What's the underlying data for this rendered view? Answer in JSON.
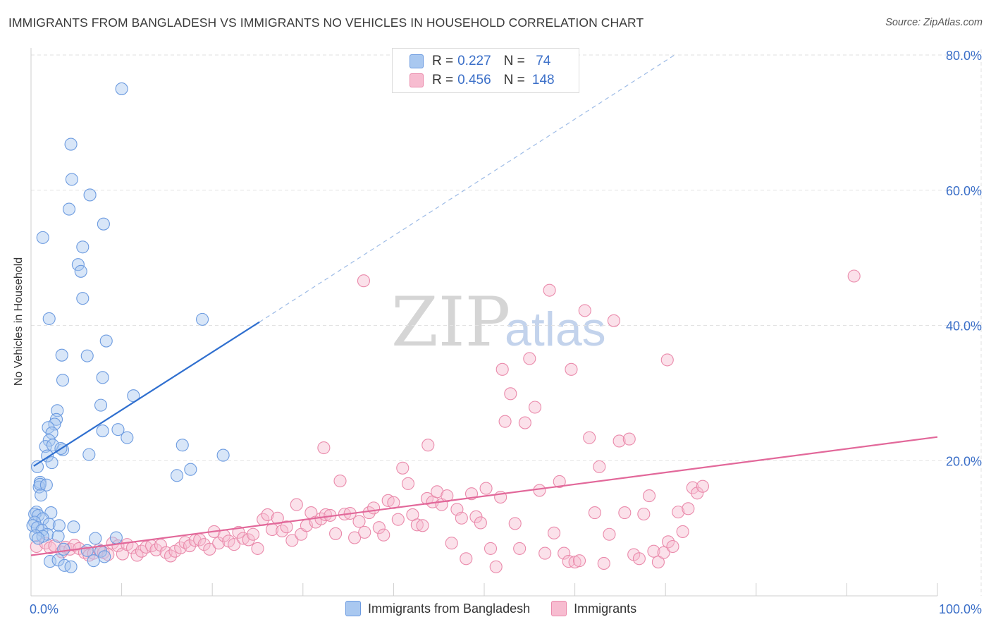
{
  "header": {
    "title": "IMMIGRANTS FROM BANGLADESH VS IMMIGRANTS NO VEHICLES IN HOUSEHOLD CORRELATION CHART",
    "source": "Source: ZipAtlas.com"
  },
  "watermark": {
    "zip": "ZIP",
    "atlas": "atlas"
  },
  "legend_top": {
    "rows": [
      {
        "r_label": "R =",
        "r_value": "0.227",
        "n_label": "N =",
        "n_value": "74",
        "color": "#a9c8f0",
        "border": "#6c9be0"
      },
      {
        "r_label": "R =",
        "r_value": "0.456",
        "n_label": "N =",
        "n_value": "148",
        "color": "#f7bcd0",
        "border": "#ea8aab"
      }
    ]
  },
  "legend_bottom": {
    "items": [
      {
        "label": "Immigrants from Bangladesh",
        "color": "#a9c8f0",
        "border": "#6c9be0"
      },
      {
        "label": "Immigrants",
        "color": "#f7bcd0",
        "border": "#ea8aab"
      }
    ]
  },
  "chart_data": {
    "type": "scatter",
    "title": "IMMIGRANTS FROM BANGLADESH VS IMMIGRANTS NO VEHICLES IN HOUSEHOLD CORRELATION CHART",
    "xlabel": "",
    "ylabel": "No Vehicles in Household",
    "xlim": [
      0,
      100
    ],
    "ylim": [
      0,
      80
    ],
    "x_tick_labels": [
      {
        "value": 0,
        "label": "0.0%"
      },
      {
        "value": 100,
        "label": "100.0%"
      }
    ],
    "y_tick_labels": [
      {
        "value": 20,
        "label": "20.0%"
      },
      {
        "value": 40,
        "label": "40.0%"
      },
      {
        "value": 60,
        "label": "60.0%"
      },
      {
        "value": 80,
        "label": "80.0%"
      }
    ],
    "grid": true,
    "legend_position": "top-center",
    "series": [
      {
        "name": "Immigrants from Bangladesh",
        "color": "#a9c8f0",
        "stroke": "#6c9be0",
        "trend_color": "#2f6fcf",
        "trend": {
          "x_start": 0.3,
          "y_start": 19.2,
          "x_solid_end": 25.2,
          "y_solid_end": 40.5,
          "x_dash_end": 71.0,
          "y_dash_end": 80.0
        },
        "points": [
          [
            10.0,
            75.0
          ],
          [
            4.4,
            66.8
          ],
          [
            4.5,
            61.6
          ],
          [
            6.5,
            59.3
          ],
          [
            4.2,
            57.2
          ],
          [
            8.0,
            55.0
          ],
          [
            1.3,
            53.0
          ],
          [
            5.7,
            51.6
          ],
          [
            5.2,
            49.0
          ],
          [
            5.5,
            48.0
          ],
          [
            5.7,
            44.0
          ],
          [
            2.0,
            41.0
          ],
          [
            18.9,
            40.9
          ],
          [
            8.3,
            37.7
          ],
          [
            3.4,
            35.6
          ],
          [
            6.2,
            35.5
          ],
          [
            7.9,
            32.3
          ],
          [
            3.5,
            31.9
          ],
          [
            11.3,
            29.6
          ],
          [
            7.7,
            28.2
          ],
          [
            2.9,
            27.4
          ],
          [
            2.8,
            26.1
          ],
          [
            2.6,
            25.4
          ],
          [
            1.9,
            24.9
          ],
          [
            2.3,
            24.1
          ],
          [
            7.9,
            24.4
          ],
          [
            9.6,
            24.6
          ],
          [
            10.6,
            23.4
          ],
          [
            2.0,
            23.0
          ],
          [
            1.6,
            22.1
          ],
          [
            2.4,
            22.3
          ],
          [
            16.7,
            22.3
          ],
          [
            3.5,
            21.6
          ],
          [
            3.3,
            21.8
          ],
          [
            6.4,
            20.9
          ],
          [
            21.2,
            20.8
          ],
          [
            1.8,
            20.7
          ],
          [
            2.3,
            19.7
          ],
          [
            0.7,
            19.1
          ],
          [
            17.6,
            18.7
          ],
          [
            16.1,
            17.8
          ],
          [
            1.0,
            16.8
          ],
          [
            0.9,
            16.1
          ],
          [
            1.0,
            16.5
          ],
          [
            1.7,
            16.4
          ],
          [
            1.1,
            14.9
          ],
          [
            0.6,
            12.4
          ],
          [
            2.2,
            12.3
          ],
          [
            0.4,
            12.1
          ],
          [
            0.8,
            11.9
          ],
          [
            1.3,
            11.4
          ],
          [
            0.4,
            10.9
          ],
          [
            2.0,
            10.6
          ],
          [
            0.2,
            10.4
          ],
          [
            3.1,
            10.4
          ],
          [
            4.7,
            10.2
          ],
          [
            0.7,
            10.1
          ],
          [
            1.2,
            9.7
          ],
          [
            1.8,
            9.1
          ],
          [
            0.5,
            8.9
          ],
          [
            1.3,
            8.8
          ],
          [
            3.0,
            8.8
          ],
          [
            7.1,
            8.5
          ],
          [
            9.4,
            8.6
          ],
          [
            0.8,
            8.5
          ],
          [
            3.6,
            6.9
          ],
          [
            6.2,
            6.7
          ],
          [
            7.7,
            6.6
          ],
          [
            8.1,
            5.8
          ],
          [
            2.1,
            5.1
          ],
          [
            3.0,
            5.3
          ],
          [
            6.9,
            5.2
          ],
          [
            3.7,
            4.5
          ],
          [
            4.4,
            4.3
          ]
        ]
      },
      {
        "name": "Immigrants",
        "color": "#f7bcd0",
        "stroke": "#ea8aab",
        "trend_color": "#e2689a",
        "trend": {
          "x_start": 0,
          "y_start": 6.0,
          "x_end": 100,
          "y_end": 23.5
        },
        "points": [
          [
            0.6,
            7.3
          ],
          [
            1.6,
            7.8
          ],
          [
            2.1,
            7.1
          ],
          [
            2.6,
            7.4
          ],
          [
            3.4,
            6.5
          ],
          [
            3.8,
            7.2
          ],
          [
            4.3,
            6.9
          ],
          [
            4.8,
            7.5
          ],
          [
            5.3,
            7.0
          ],
          [
            5.9,
            6.4
          ],
          [
            6.4,
            6.0
          ],
          [
            6.9,
            6.3
          ],
          [
            7.5,
            6.8
          ],
          [
            8.0,
            6.4
          ],
          [
            8.5,
            6.1
          ],
          [
            9.0,
            7.8
          ],
          [
            9.6,
            7.4
          ],
          [
            10.1,
            6.2
          ],
          [
            10.6,
            7.6
          ],
          [
            11.2,
            7.1
          ],
          [
            11.7,
            6.0
          ],
          [
            12.2,
            6.6
          ],
          [
            12.7,
            7.2
          ],
          [
            13.3,
            7.4
          ],
          [
            13.8,
            6.8
          ],
          [
            14.3,
            7.5
          ],
          [
            14.9,
            6.4
          ],
          [
            15.4,
            5.9
          ],
          [
            15.9,
            6.6
          ],
          [
            16.5,
            7.1
          ],
          [
            17.0,
            7.9
          ],
          [
            17.5,
            7.4
          ],
          [
            18.1,
            8.2
          ],
          [
            18.6,
            8.3
          ],
          [
            19.1,
            7.6
          ],
          [
            19.7,
            6.9
          ],
          [
            20.2,
            9.5
          ],
          [
            20.7,
            7.8
          ],
          [
            21.3,
            8.9
          ],
          [
            21.8,
            8.1
          ],
          [
            22.4,
            7.6
          ],
          [
            22.9,
            9.4
          ],
          [
            23.4,
            8.5
          ],
          [
            24.0,
            8.3
          ],
          [
            24.5,
            9.1
          ],
          [
            25.0,
            7.0
          ],
          [
            25.6,
            11.3
          ],
          [
            26.1,
            12.0
          ],
          [
            26.6,
            9.8
          ],
          [
            27.2,
            11.5
          ],
          [
            27.7,
            9.6
          ],
          [
            28.2,
            10.2
          ],
          [
            28.8,
            8.2
          ],
          [
            29.3,
            13.5
          ],
          [
            29.8,
            9.1
          ],
          [
            30.4,
            10.4
          ],
          [
            30.9,
            12.3
          ],
          [
            31.4,
            10.9
          ],
          [
            32.0,
            11.4
          ],
          [
            32.5,
            12.0
          ],
          [
            33.0,
            11.9
          ],
          [
            33.6,
            9.2
          ],
          [
            34.1,
            17.0
          ],
          [
            34.6,
            12.1
          ],
          [
            35.2,
            12.2
          ],
          [
            35.7,
            8.6
          ],
          [
            36.2,
            11.0
          ],
          [
            36.8,
            9.4
          ],
          [
            37.3,
            12.3
          ],
          [
            37.8,
            13.0
          ],
          [
            38.4,
            10.1
          ],
          [
            38.9,
            9.0
          ],
          [
            39.4,
            14.1
          ],
          [
            40.0,
            13.8
          ],
          [
            40.5,
            11.3
          ],
          [
            41.0,
            18.9
          ],
          [
            41.6,
            16.6
          ],
          [
            42.1,
            12.0
          ],
          [
            42.6,
            10.5
          ],
          [
            43.2,
            10.4
          ],
          [
            43.7,
            14.4
          ],
          [
            44.3,
            13.9
          ],
          [
            44.8,
            15.4
          ],
          [
            45.3,
            13.5
          ],
          [
            45.9,
            14.8
          ],
          [
            46.4,
            7.8
          ],
          [
            47.0,
            12.8
          ],
          [
            47.5,
            11.5
          ],
          [
            48.0,
            5.5
          ],
          [
            48.6,
            15.1
          ],
          [
            49.1,
            11.7
          ],
          [
            49.6,
            10.8
          ],
          [
            50.2,
            15.9
          ],
          [
            50.7,
            7.0
          ],
          [
            51.3,
            4.3
          ],
          [
            51.8,
            14.6
          ],
          [
            52.3,
            25.8
          ],
          [
            52.9,
            29.9
          ],
          [
            53.4,
            10.7
          ],
          [
            53.9,
            7.0
          ],
          [
            54.5,
            25.6
          ],
          [
            55.0,
            35.1
          ],
          [
            55.6,
            27.9
          ],
          [
            56.1,
            15.6
          ],
          [
            56.7,
            6.3
          ],
          [
            57.2,
            45.2
          ],
          [
            57.7,
            9.3
          ],
          [
            58.3,
            16.9
          ],
          [
            58.8,
            6.3
          ],
          [
            59.3,
            5.1
          ],
          [
            60.0,
            5.0
          ],
          [
            60.5,
            5.2
          ],
          [
            61.1,
            42.2
          ],
          [
            61.6,
            23.4
          ],
          [
            62.2,
            12.3
          ],
          [
            62.7,
            19.1
          ],
          [
            63.2,
            4.8
          ],
          [
            63.8,
            9.1
          ],
          [
            64.3,
            40.7
          ],
          [
            64.9,
            22.9
          ],
          [
            65.5,
            12.3
          ],
          [
            66.0,
            23.2
          ],
          [
            66.5,
            6.1
          ],
          [
            67.1,
            5.5
          ],
          [
            67.6,
            12.1
          ],
          [
            68.2,
            14.8
          ],
          [
            68.7,
            6.6
          ],
          [
            69.2,
            5.0
          ],
          [
            69.8,
            6.4
          ],
          [
            70.3,
            8.0
          ],
          [
            70.8,
            7.3
          ],
          [
            71.4,
            12.4
          ],
          [
            71.9,
            9.5
          ],
          [
            72.5,
            12.9
          ],
          [
            73.0,
            16.0
          ],
          [
            73.5,
            15.2
          ],
          [
            74.1,
            16.2
          ],
          [
            43.8,
            22.3
          ],
          [
            52.0,
            33.5
          ],
          [
            59.6,
            33.5
          ],
          [
            70.2,
            34.9
          ],
          [
            90.8,
            47.3
          ],
          [
            36.7,
            46.6
          ],
          [
            32.3,
            21.9
          ]
        ]
      }
    ]
  }
}
